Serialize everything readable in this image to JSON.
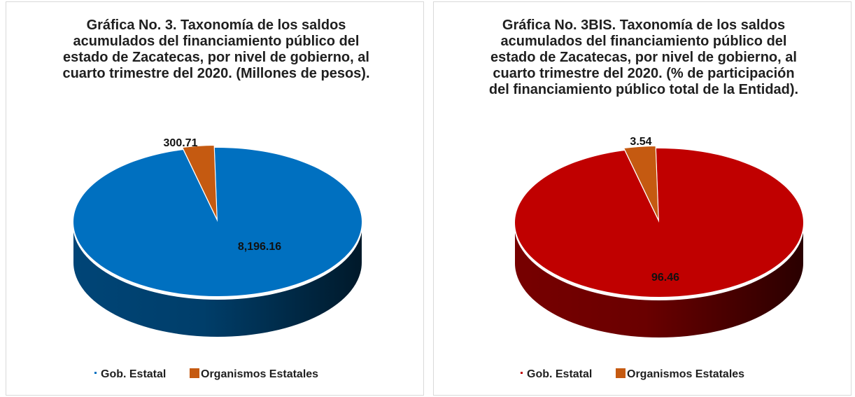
{
  "chart_data": [
    {
      "type": "pie",
      "title": "Gráfica No. 3. Taxonomía de los saldos acumulados del financiamiento público del estado de Zacatecas, por nivel de gobierno, al cuarto trimestre del 2020. (Millones de pesos).",
      "categories": [
        "Gob. Estatal",
        "Organismos Estatales"
      ],
      "values": [
        8196.16,
        300.71
      ],
      "data_labels": [
        "8,196.16",
        "300.71"
      ],
      "colors": [
        "#0070C0",
        "#C55A11"
      ],
      "legend": "bottom"
    },
    {
      "type": "pie",
      "title": "Gráfica No. 3BIS. Taxonomía de los saldos acumulados del financiamiento público del estado de Zacatecas, por nivel de gobierno, al cuarto trimestre del 2020. (% de participación del financiamiento público total de la Entidad).",
      "categories": [
        "Gob. Estatal",
        "Organismos Estatales"
      ],
      "values": [
        96.46,
        3.54
      ],
      "data_labels": [
        "96.46",
        "3.54"
      ],
      "colors": [
        "#C00000",
        "#C55A11"
      ],
      "legend": "bottom"
    }
  ]
}
